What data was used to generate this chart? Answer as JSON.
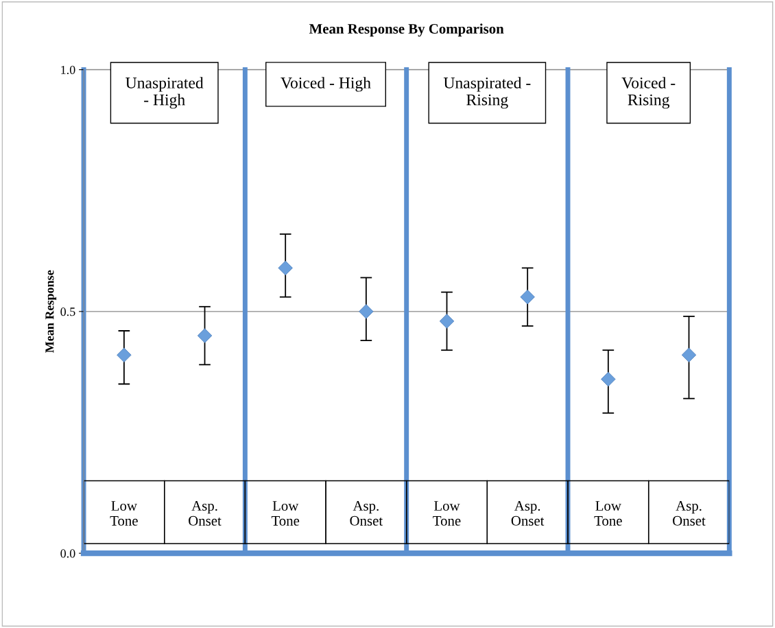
{
  "chart_data": {
    "type": "scatter",
    "title": "Mean Response By Comparison",
    "ylabel": "Mean Response",
    "categories": [
      "Low Tone",
      "Asp. Onset",
      "Low Tone",
      "Asp. Onset",
      "Low Tone",
      "Asp. Onset",
      "Low Tone",
      "Asp. Onset"
    ],
    "series": [
      {
        "color": "#6a9fdc",
        "values": [
          0.41,
          0.45,
          0.59,
          0.5,
          0.48,
          0.53,
          0.36,
          0.41
        ],
        "errors": [
          [
            0.35,
            0.46
          ],
          [
            0.39,
            0.51
          ],
          [
            0.53,
            0.66
          ],
          [
            0.44,
            0.57
          ],
          [
            0.42,
            0.54
          ],
          [
            0.47,
            0.59
          ],
          [
            0.29,
            0.42
          ],
          [
            0.32,
            0.49
          ]
        ]
      }
    ],
    "ylim": [
      0,
      1
    ],
    "yticks": [
      {
        "value": 0,
        "label": "0.0"
      },
      {
        "value": 0.5,
        "label": "0.5"
      },
      {
        "value": 1,
        "label": "1.0"
      }
    ],
    "marker": "diamond",
    "ref_lines": [
      {
        "axis": "y",
        "value": 0.5,
        "color": "#888888"
      },
      {
        "axis": "y",
        "value": 1,
        "color": "#888888"
      }
    ],
    "annotations": [
      "Unaspirated - High",
      "Voiced - High",
      "Unaspirated - Rising",
      "Voiced - Rising"
    ]
  }
}
